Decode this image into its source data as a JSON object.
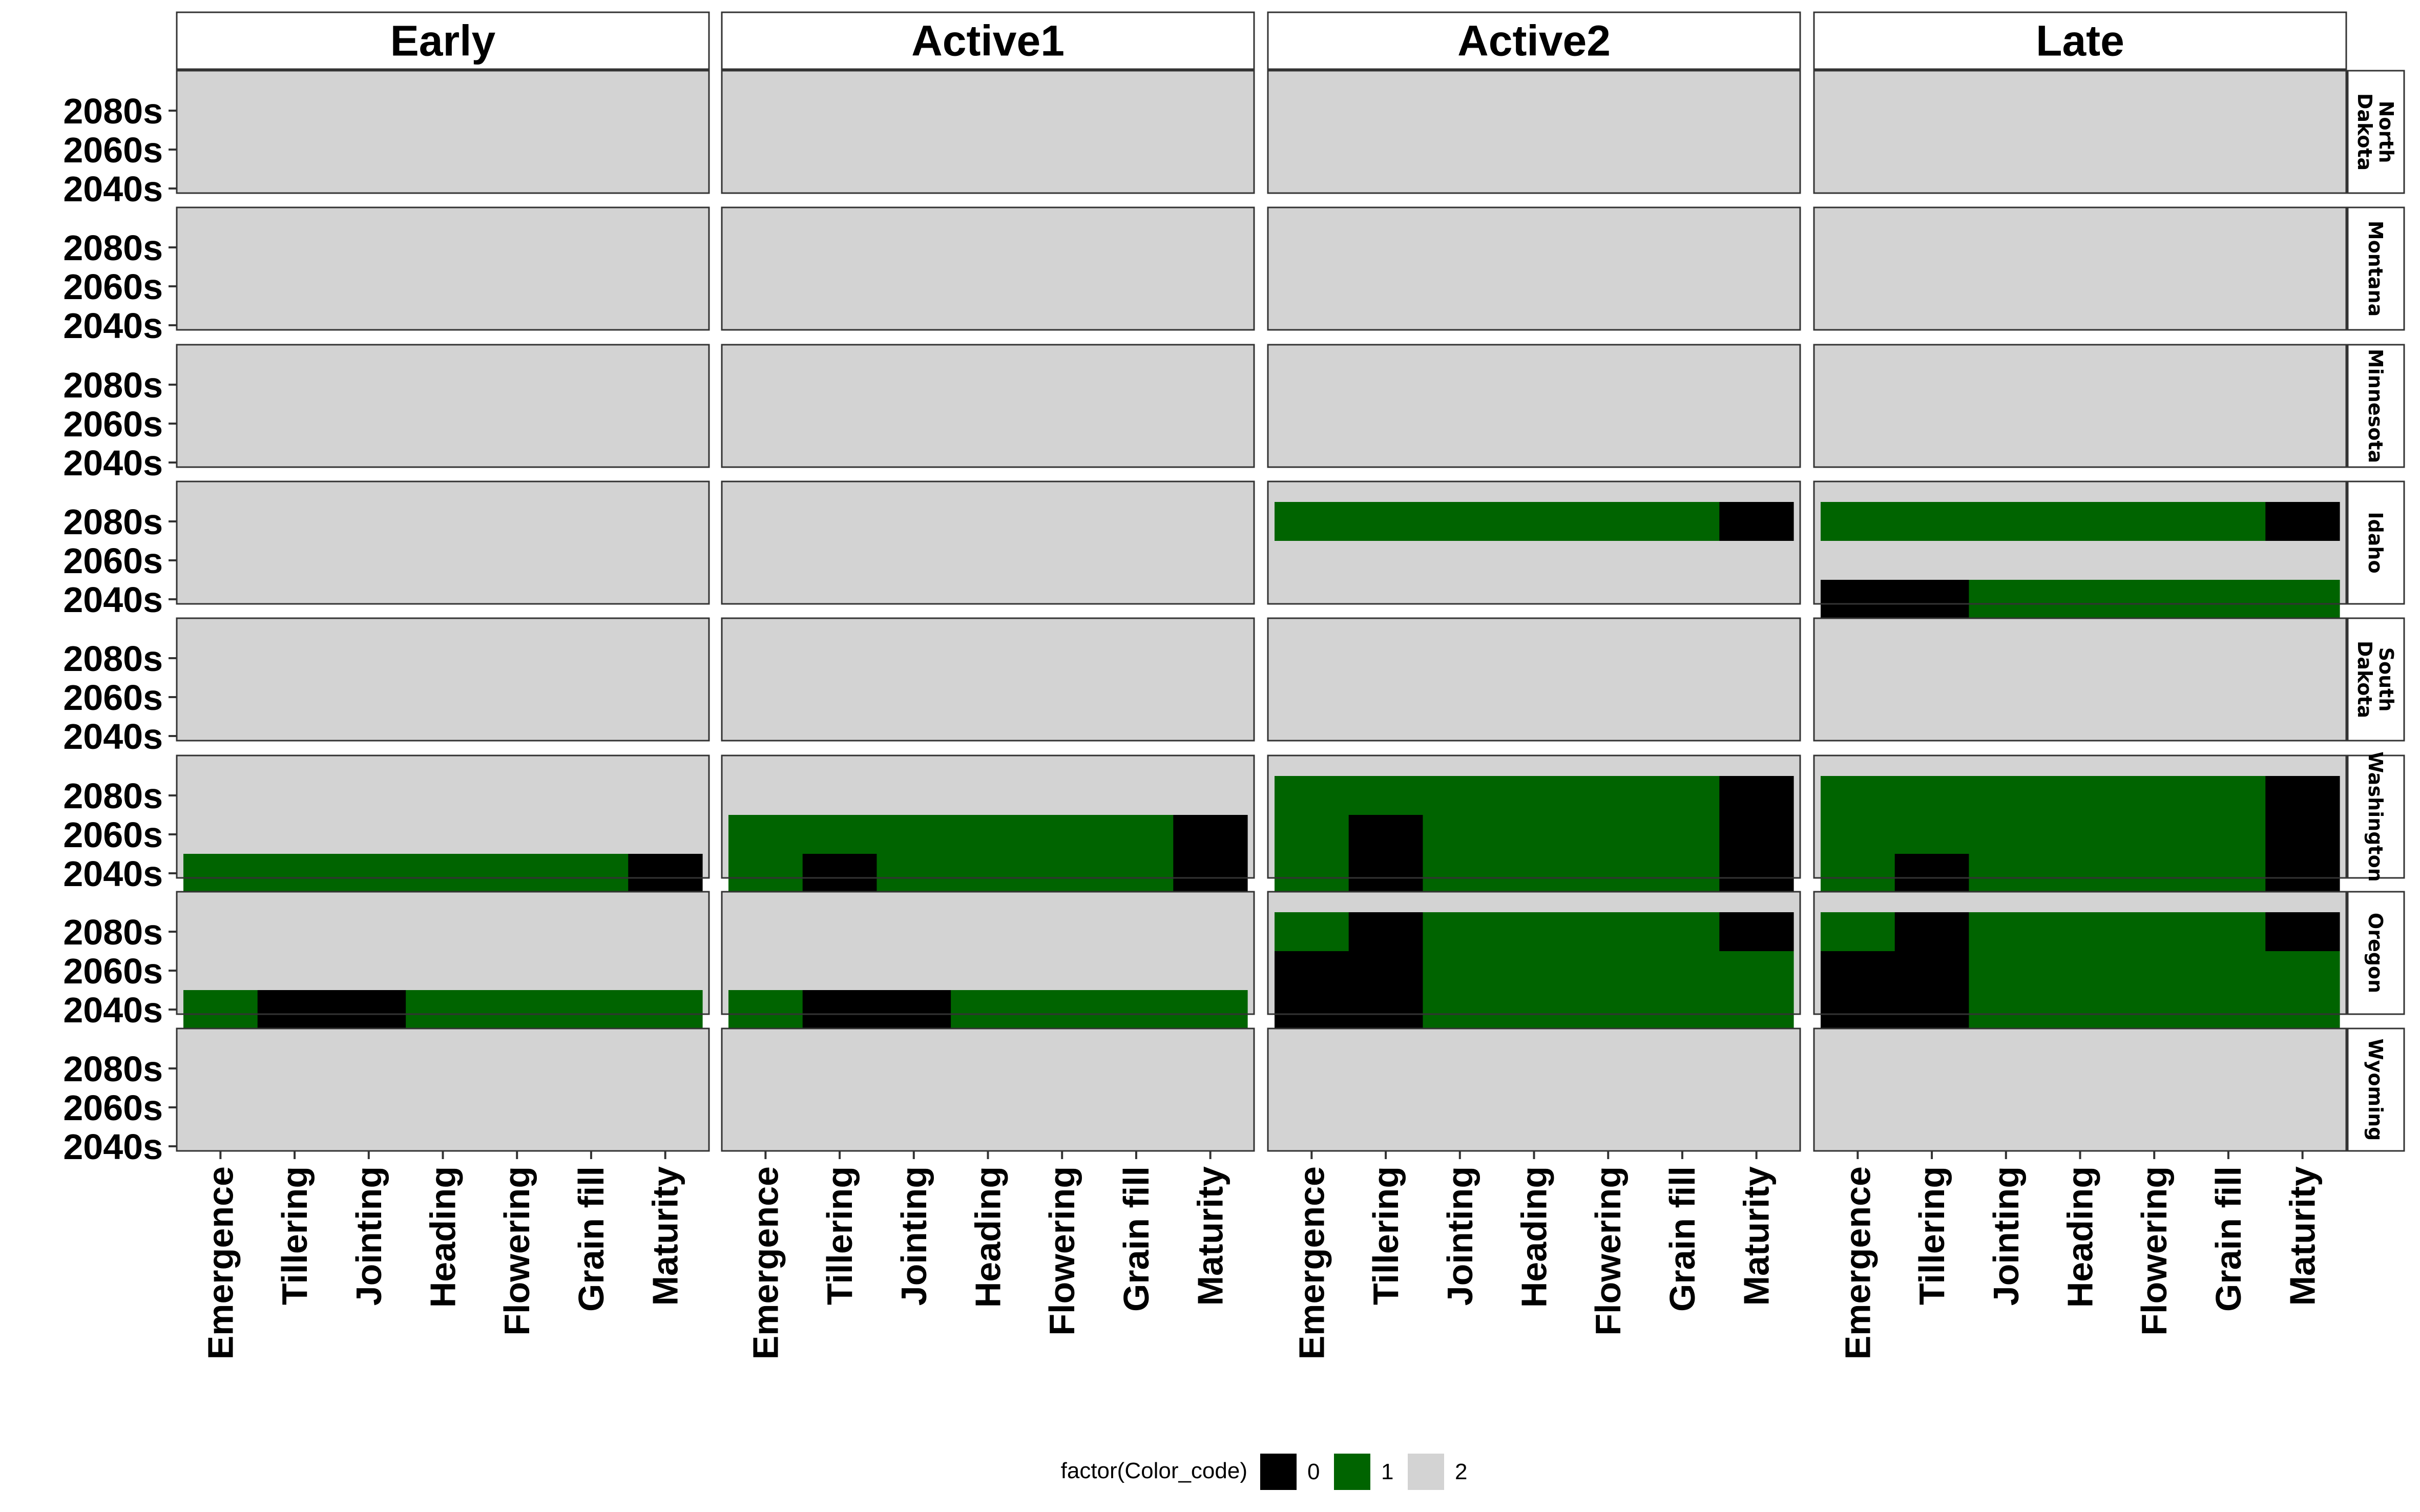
{
  "chart_data": {
    "type": "heatmap",
    "facet_columns": [
      "Early",
      "Active1",
      "Active2",
      "Late"
    ],
    "facet_rows": [
      "North\nDakota",
      "Montana",
      "Minnesota",
      "Idaho",
      "South\nDakota",
      "Washington",
      "Oregon",
      "Wyoming"
    ],
    "x_categories": [
      "Emergence",
      "Tillering",
      "Jointing",
      "Heading",
      "Flowering",
      "Grain fill",
      "Maturity"
    ],
    "y_categories": [
      "2040s",
      "2060s",
      "2080s"
    ],
    "legend": {
      "title": "factor(Color_code)",
      "position": "bottom",
      "items": [
        {
          "label": "0",
          "color": "#000000"
        },
        {
          "label": "1",
          "color": "#006400"
        },
        {
          "label": "2",
          "color": "#d3d3d3"
        }
      ]
    },
    "panel_background": "#d3d3d3",
    "cells_note": "values listed per panel; omitted cells = 2 (panel background)",
    "cells": {
      "Idaho": {
        "Active2": {
          "2080s": [
            1,
            1,
            1,
            1,
            1,
            1,
            0
          ]
        },
        "Late": {
          "2080s": [
            1,
            1,
            1,
            1,
            1,
            1,
            0
          ],
          "2040s": [
            0,
            0,
            1,
            1,
            1,
            1,
            1
          ]
        }
      },
      "Washington": {
        "Early": {
          "2040s": [
            1,
            1,
            1,
            1,
            1,
            1,
            0
          ]
        },
        "Active1": {
          "2060s": [
            1,
            1,
            1,
            1,
            1,
            1,
            0
          ],
          "2040s": [
            1,
            0,
            1,
            1,
            1,
            1,
            0
          ]
        },
        "Active2": {
          "2080s": [
            1,
            1,
            1,
            1,
            1,
            1,
            0
          ],
          "2060s": [
            1,
            0,
            1,
            1,
            1,
            1,
            0
          ],
          "2040s": [
            1,
            0,
            1,
            1,
            1,
            1,
            0
          ]
        },
        "Late": {
          "2080s": [
            1,
            1,
            1,
            1,
            1,
            1,
            0
          ],
          "2060s": [
            1,
            1,
            1,
            1,
            1,
            1,
            0
          ],
          "2040s": [
            1,
            0,
            1,
            1,
            1,
            1,
            0
          ]
        }
      },
      "Oregon": {
        "Early": {
          "2040s": [
            1,
            0,
            0,
            1,
            1,
            1,
            1
          ]
        },
        "Active1": {
          "2040s": [
            1,
            0,
            0,
            1,
            1,
            1,
            1
          ]
        },
        "Active2": {
          "2080s": [
            1,
            0,
            1,
            1,
            1,
            1,
            0
          ],
          "2060s": [
            0,
            0,
            1,
            1,
            1,
            1,
            1
          ],
          "2040s": [
            0,
            0,
            1,
            1,
            1,
            1,
            1
          ]
        },
        "Late": {
          "2080s": [
            1,
            0,
            1,
            1,
            1,
            1,
            0
          ],
          "2060s": [
            0,
            0,
            1,
            1,
            1,
            1,
            1
          ],
          "2040s": [
            0,
            0,
            1,
            1,
            1,
            1,
            1
          ]
        }
      }
    }
  }
}
